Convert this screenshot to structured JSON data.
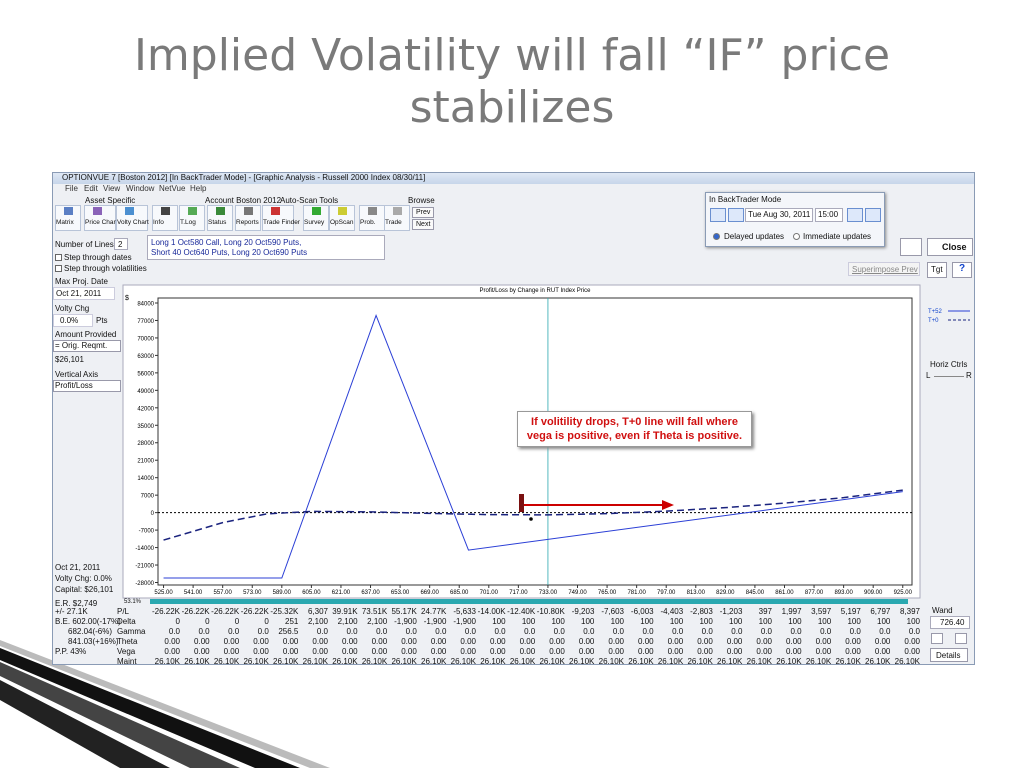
{
  "slide": {
    "title_lines": [
      "Implied Volatility will fall “IF” price",
      "stabilizes"
    ]
  },
  "window": {
    "title": "OPTIONVUE 7  [Boston 2012]  [In BackTrader Mode] - [Graphic Analysis - Russell 2000 Index  08/30/11]",
    "menu": [
      "File",
      "Edit",
      "View",
      "Window",
      "NetVue",
      "Help"
    ],
    "groups": [
      "Asset Specific",
      "Account Boston 2012",
      "Auto-Scan Tools",
      "Browse"
    ],
    "buttons": [
      "Matrix",
      "Price Chart",
      "Volty Chart",
      "Info",
      "T.Log",
      "Status",
      "Reports",
      "Trade Finder",
      "Survey",
      "OpScan",
      "Prob.",
      "Trade"
    ],
    "browse": [
      "Prev",
      "Next"
    ],
    "backtrader": {
      "title": "In BackTrader Mode",
      "date": "Tue Aug 30, 2011",
      "time": "15:00",
      "options": [
        "Delayed updates",
        "Immediate updates"
      ]
    },
    "left_panel": {
      "lines_label": "Number of Lines",
      "lines_value": "2",
      "step_dates": "Step through dates",
      "step_vols": "Step through volatilities",
      "max_date_label": "Max Proj. Date",
      "max_date": "Oct 21, 2011",
      "volty_label": "Volty Chg",
      "volty_value": "0.0%",
      "volty_unit": "Pts",
      "amount_label": "Amount Provided",
      "amount_value": "= Orig. Reqmt.",
      "amount": "$26,101",
      "axis_label": "Vertical Axis",
      "axis_value": "Profit/Loss",
      "summary": [
        "Oct 21, 2011",
        "Volty Chg:  0.0%",
        "Capital:  $26,101",
        "E.R. $2,749"
      ]
    },
    "description": [
      "Long 1 Oct580 Call, Long 20 Oct590 Puts,",
      "Short 40 Oct640 Puts, Long 20 Oct690 Puts"
    ],
    "right_panel": {
      "close": "Close",
      "tgt": "Tgt",
      "help": "?",
      "superimpose": "Superimpose Prev",
      "horiz": "Horiz Ctrls",
      "left": "L",
      "right": "R",
      "wand": "Wand",
      "wand_value": "726.40",
      "details": "Details"
    },
    "status": "53.1%",
    "table": {
      "side_labels": [
        "+/-   27.1K",
        "B.E. 602.00(-17%)",
        "682.04(-6%)",
        "841.03(+16%)",
        "P.P. 43%"
      ],
      "row_labels": [
        "P/L",
        "Delta",
        "Gamma",
        "Theta",
        "Vega",
        "Maint"
      ],
      "rows": [
        [
          "-26.22K",
          "-26.22K",
          "-26.22K",
          "-26.22K",
          "-25.32K",
          "6,307",
          "39.91K",
          "73.51K",
          "55.17K",
          "24.77K",
          "-5,633",
          "-14.00K",
          "-12.40K",
          "-10.80K",
          "-9,203",
          "-7,603",
          "-6,003",
          "-4,403",
          "-2,803",
          "-1,203",
          "397",
          "1,997",
          "3,597",
          "5,197",
          "6,797",
          "8,397"
        ],
        [
          "0",
          "0",
          "0",
          "0",
          "251",
          "2,100",
          "2,100",
          "2,100",
          "-1,900",
          "-1,900",
          "-1,900",
          "100",
          "100",
          "100",
          "100",
          "100",
          "100",
          "100",
          "100",
          "100",
          "100",
          "100",
          "100",
          "100",
          "100",
          "100"
        ],
        [
          "0.0",
          "0.0",
          "0.0",
          "0.0",
          "256.5",
          "0.0",
          "0.0",
          "0.0",
          "0.0",
          "0.0",
          "0.0",
          "0.0",
          "0.0",
          "0.0",
          "0.0",
          "0.0",
          "0.0",
          "0.0",
          "0.0",
          "0.0",
          "0.0",
          "0.0",
          "0.0",
          "0.0",
          "0.0",
          "0.0"
        ],
        [
          "0.00",
          "0.00",
          "0.00",
          "0.00",
          "0.00",
          "0.00",
          "0.00",
          "0.00",
          "0.00",
          "0.00",
          "0.00",
          "0.00",
          "0.00",
          "0.00",
          "0.00",
          "0.00",
          "0.00",
          "0.00",
          "0.00",
          "0.00",
          "0.00",
          "0.00",
          "0.00",
          "0.00",
          "0.00",
          "0.00"
        ],
        [
          "0.00",
          "0.00",
          "0.00",
          "0.00",
          "0.00",
          "0.00",
          "0.00",
          "0.00",
          "0.00",
          "0.00",
          "0.00",
          "0.00",
          "0.00",
          "0.00",
          "0.00",
          "0.00",
          "0.00",
          "0.00",
          "0.00",
          "0.00",
          "0.00",
          "0.00",
          "0.00",
          "0.00",
          "0.00",
          "0.00"
        ],
        [
          "26.10K",
          "26.10K",
          "26.10K",
          "26.10K",
          "26.10K",
          "26.10K",
          "26.10K",
          "26.10K",
          "26.10K",
          "26.10K",
          "26.10K",
          "26.10K",
          "26.10K",
          "26.10K",
          "26.10K",
          "26.10K",
          "26.10K",
          "26.10K",
          "26.10K",
          "26.10K",
          "26.10K",
          "26.10K",
          "26.10K",
          "26.10K",
          "26.10K",
          "26.10K"
        ]
      ]
    }
  },
  "chart_data": {
    "type": "line",
    "title": "Profit/Loss by Change in RUT Index Price",
    "y_label": "$",
    "xlim": [
      522,
      930
    ],
    "ylim": [
      -29000,
      86000
    ],
    "xticks": [
      {
        "value": 525,
        "label": "525.00"
      },
      {
        "value": 541,
        "label": "541.00"
      },
      {
        "value": 557,
        "label": "557.00"
      },
      {
        "value": 573,
        "label": "573.00"
      },
      {
        "value": 589,
        "label": "589.00"
      },
      {
        "value": 605,
        "label": "605.00"
      },
      {
        "value": 621,
        "label": "621.00"
      },
      {
        "value": 637,
        "label": "637.00"
      },
      {
        "value": 653,
        "label": "653.00"
      },
      {
        "value": 669,
        "label": "669.00"
      },
      {
        "value": 685,
        "label": "685.00"
      },
      {
        "value": 701,
        "label": "701.00"
      },
      {
        "value": 717,
        "label": "717.00"
      },
      {
        "value": 733,
        "label": "733.00"
      },
      {
        "value": 749,
        "label": "749.00"
      },
      {
        "value": 765,
        "label": "765.00"
      },
      {
        "value": 781,
        "label": "781.00"
      },
      {
        "value": 797,
        "label": "797.00"
      },
      {
        "value": 813,
        "label": "813.00"
      },
      {
        "value": 829,
        "label": "829.00"
      },
      {
        "value": 845,
        "label": "845.00"
      },
      {
        "value": 861,
        "label": "861.00"
      },
      {
        "value": 877,
        "label": "877.00"
      },
      {
        "value": 893,
        "label": "893.00"
      },
      {
        "value": 909,
        "label": "909.00"
      },
      {
        "value": 925,
        "label": "925.00"
      }
    ],
    "yticks": [
      84000,
      77000,
      70000,
      63000,
      56000,
      49000,
      42000,
      35000,
      28000,
      21000,
      14000,
      7000,
      0,
      -7000,
      -14000,
      -21000,
      -28000
    ],
    "series": [
      {
        "name": "T+52",
        "color": "#2b3fd6",
        "dash": false,
        "x": [
          525,
          589,
          640,
          690,
          925
        ],
        "values": [
          -26220,
          -26220,
          79000,
          -15000,
          8400
        ]
      },
      {
        "name": "T+0",
        "color": "#1a237e",
        "dash": true,
        "x": [
          525,
          557,
          581,
          605,
          637,
          669,
          701,
          733,
          765,
          797,
          829,
          861,
          893,
          925
        ],
        "values": [
          -11000,
          -4000,
          -500,
          500,
          300,
          -300,
          -800,
          -900,
          -400,
          600,
          2000,
          3800,
          6000,
          9000
        ]
      }
    ],
    "zero_line": true,
    "annotation": "If volitility drops, T+0 line will fall where vega is positive, even if Theta is positive."
  }
}
